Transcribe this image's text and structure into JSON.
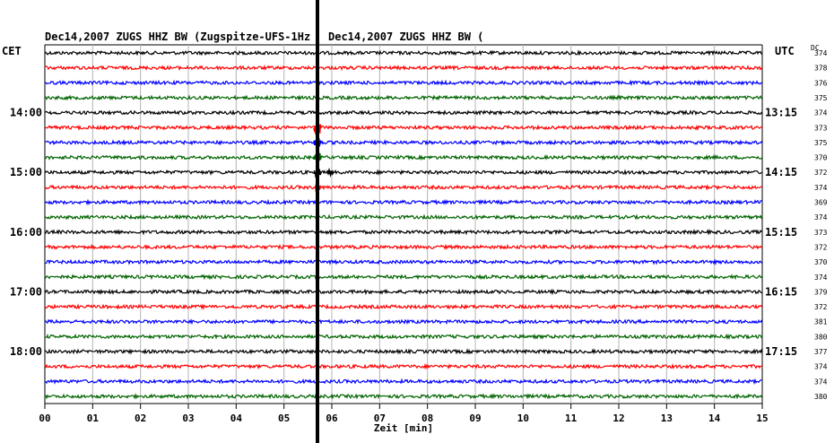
{
  "header": {
    "title_left": "Dec14,2007   ZUGS HHZ BW (Zugspitze-UFS-1Hz",
    "title_right": "Dec14,2007   ZUGS HHZ BW (",
    "left_zone": "CET",
    "right_zone": "UTC",
    "dc_label": "DC"
  },
  "chart_data": {
    "type": "line",
    "title": "Dec14,2007   ZUGS HHZ BW (Zugspitze-UFS-1Hz",
    "xlabel": "Zeit [min]",
    "ylabel": "",
    "x_ticks": [
      "00",
      "01",
      "02",
      "03",
      "04",
      "05",
      "06",
      "07",
      "08",
      "09",
      "10",
      "11",
      "12",
      "13",
      "14",
      "15"
    ],
    "xlim": [
      0,
      15
    ],
    "grid": "vertical",
    "trace_colors": [
      "#000000",
      "#ff0000",
      "#0000ff",
      "#006400"
    ],
    "left_time_labels": [
      {
        "trace": 4,
        "text": "14:00"
      },
      {
        "trace": 8,
        "text": "15:00"
      },
      {
        "trace": 12,
        "text": "16:00"
      },
      {
        "trace": 16,
        "text": "17:00"
      },
      {
        "trace": 20,
        "text": "18:00"
      }
    ],
    "right_time_labels": [
      {
        "trace": 4,
        "text": "13:15"
      },
      {
        "trace": 8,
        "text": "14:15"
      },
      {
        "trace": 12,
        "text": "15:15"
      },
      {
        "trace": 16,
        "text": "16:15"
      },
      {
        "trace": 20,
        "text": "17:15"
      }
    ],
    "dc_offsets": [
      "374",
      "378",
      "376",
      "375",
      "374",
      "373",
      "375",
      "370",
      "372",
      "374",
      "369",
      "374",
      "373",
      "372",
      "370",
      "374",
      "379",
      "372",
      "381",
      "380",
      "377",
      "374",
      "374",
      "380"
    ],
    "vertical_marker_min": 5.7,
    "events": [
      {
        "trace": 5,
        "minute": 5.7,
        "amplitude": "large"
      },
      {
        "trace": 6,
        "minute": 5.7,
        "amplitude": "large"
      },
      {
        "trace": 7,
        "minute": 5.7,
        "amplitude": "large"
      },
      {
        "trace": 8,
        "minute": 5.7,
        "amplitude": "large"
      },
      {
        "trace": 8,
        "minute": 5.97,
        "amplitude": "small"
      },
      {
        "trace": 9,
        "minute": 5.7,
        "amplitude": "medium"
      }
    ]
  }
}
